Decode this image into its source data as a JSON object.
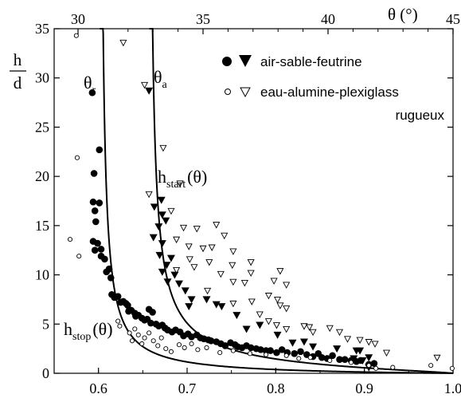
{
  "chart_data": {
    "type": "scatter",
    "x_bottom": {
      "ticks": [
        0.6,
        0.7,
        0.8,
        0.9,
        1.0
      ],
      "tick_labels": [
        "0.6",
        "0.7",
        "0.8",
        "0.9",
        "1.0"
      ],
      "range": [
        0.55,
        1.0
      ]
    },
    "x_top": {
      "label": "θ (°)",
      "ticks": [
        30,
        35,
        40,
        45
      ],
      "tick_labels": [
        "30",
        "35",
        "40",
        "45"
      ]
    },
    "y": {
      "label_num": "h",
      "label_den": "d",
      "ticks": [
        0,
        5,
        10,
        15,
        20,
        25,
        30,
        35
      ],
      "tick_labels": [
        "0",
        "5",
        "10",
        "15",
        "20",
        "25",
        "30",
        "35"
      ],
      "range": [
        0,
        35
      ]
    },
    "legend": {
      "placement": "top-right",
      "entries": [
        {
          "label": "air-sable-feutrine",
          "markers": [
            "filled-circle",
            "filled-triangle-down"
          ]
        },
        {
          "label": "eau-alumine-plexiglass",
          "markers": [
            "open-circle",
            "open-triangle-down"
          ]
        }
      ],
      "extra_line": "rugueux"
    },
    "annotations": {
      "theta_r_base": "θ",
      "theta_r_sub": "r",
      "theta_a_base": "θ",
      "theta_a_sub": "a",
      "h_start_base": "h",
      "h_start_sub": "start",
      "h_start_arg": "(θ)",
      "h_stop_base": "h",
      "h_stop_sub": "stop",
      "h_stop_arg": "(θ)"
    },
    "curves": [
      {
        "name": "h_stop(θ)",
        "asymptote_x": 0.601
      },
      {
        "name": "h_start(θ)",
        "asymptote_x": 0.657
      }
    ],
    "series": [
      {
        "marker": "filled-circle",
        "points": [
          [
            0.593,
            28.5
          ],
          [
            0.595,
            20.3
          ],
          [
            0.601,
            22.7
          ],
          [
            0.594,
            17.4
          ],
          [
            0.596,
            16.5
          ],
          [
            0.601,
            17.3
          ],
          [
            0.597,
            15.4
          ],
          [
            0.594,
            13.4
          ],
          [
            0.599,
            13.2
          ],
          [
            0.596,
            12.5
          ],
          [
            0.603,
            12.6
          ],
          [
            0.603,
            11.9
          ],
          [
            0.607,
            11.6
          ],
          [
            0.609,
            10.3
          ],
          [
            0.612,
            10.6
          ],
          [
            0.614,
            9.7
          ],
          [
            0.615,
            8.0
          ],
          [
            0.618,
            7.7
          ],
          [
            0.622,
            7.8
          ],
          [
            0.625,
            7.2
          ],
          [
            0.628,
            7.3
          ],
          [
            0.631,
            7.1
          ],
          [
            0.633,
            6.9
          ],
          [
            0.634,
            6.3
          ],
          [
            0.637,
            6.4
          ],
          [
            0.641,
            6.1
          ],
          [
            0.642,
            5.8
          ],
          [
            0.645,
            5.9
          ],
          [
            0.649,
            5.6
          ],
          [
            0.652,
            5.4
          ],
          [
            0.655,
            5.5
          ],
          [
            0.657,
            6.5
          ],
          [
            0.659,
            5.1
          ],
          [
            0.661,
            6.2
          ],
          [
            0.665,
            5.0
          ],
          [
            0.668,
            4.8
          ],
          [
            0.672,
            4.9
          ],
          [
            0.675,
            4.6
          ],
          [
            0.678,
            4.4
          ],
          [
            0.683,
            4.2
          ],
          [
            0.687,
            4.4
          ],
          [
            0.692,
            4.2
          ],
          [
            0.696,
            3.8
          ],
          [
            0.701,
            4.0
          ],
          [
            0.705,
            3.7
          ],
          [
            0.711,
            3.9
          ],
          [
            0.715,
            3.6
          ],
          [
            0.719,
            3.5
          ],
          [
            0.724,
            3.4
          ],
          [
            0.727,
            3.3
          ],
          [
            0.733,
            3.2
          ],
          [
            0.738,
            3.0
          ],
          [
            0.743,
            2.8
          ],
          [
            0.749,
            3.1
          ],
          [
            0.754,
            2.9
          ],
          [
            0.757,
            2.7
          ],
          [
            0.762,
            2.6
          ],
          [
            0.767,
            2.8
          ],
          [
            0.772,
            2.6
          ],
          [
            0.778,
            2.5
          ],
          [
            0.783,
            2.4
          ],
          [
            0.789,
            2.3
          ],
          [
            0.794,
            2.3
          ],
          [
            0.801,
            2.1
          ],
          [
            0.807,
            2.4
          ],
          [
            0.813,
            2.1
          ],
          [
            0.821,
            2.0
          ],
          [
            0.828,
            2.2
          ],
          [
            0.835,
            1.9
          ],
          [
            0.842,
            1.7
          ],
          [
            0.848,
            2.0
          ],
          [
            0.852,
            1.6
          ],
          [
            0.858,
            1.5
          ],
          [
            0.864,
            1.8
          ],
          [
            0.872,
            1.4
          ],
          [
            0.878,
            1.4
          ],
          [
            0.885,
            1.3
          ],
          [
            0.891,
            1.2
          ],
          [
            0.896,
            1.3
          ],
          [
            0.905,
            0.9
          ],
          [
            0.911,
            1.0
          ]
        ]
      },
      {
        "marker": "filled-triangle-down",
        "points": [
          [
            0.657,
            28.7
          ],
          [
            0.663,
            16.9
          ],
          [
            0.671,
            17.6
          ],
          [
            0.672,
            16.1
          ],
          [
            0.668,
            14.9
          ],
          [
            0.676,
            15.5
          ],
          [
            0.662,
            13.8
          ],
          [
            0.672,
            13.2
          ],
          [
            0.669,
            12.0
          ],
          [
            0.682,
            11.7
          ],
          [
            0.677,
            11.0
          ],
          [
            0.672,
            10.3
          ],
          [
            0.686,
            10.0
          ],
          [
            0.678,
            9.3
          ],
          [
            0.691,
            9.1
          ],
          [
            0.698,
            8.4
          ],
          [
            0.705,
            7.5
          ],
          [
            0.702,
            6.8
          ],
          [
            0.722,
            7.5
          ],
          [
            0.733,
            7.0
          ],
          [
            0.739,
            6.8
          ],
          [
            0.756,
            5.9
          ],
          [
            0.767,
            4.5
          ],
          [
            0.782,
            4.9
          ],
          [
            0.802,
            3.9
          ],
          [
            0.819,
            3.1
          ],
          [
            0.832,
            3.2
          ],
          [
            0.842,
            2.7
          ],
          [
            0.869,
            2.5
          ],
          [
            0.888,
            1.5
          ],
          [
            0.891,
            2.3
          ],
          [
            0.895,
            2.3
          ],
          [
            0.898,
            1.3
          ],
          [
            0.905,
            1.6
          ],
          [
            0.905,
            0.6
          ]
        ]
      },
      {
        "marker": "open-circle",
        "points": [
          [
            0.575,
            34.3
          ],
          [
            0.576,
            21.9
          ],
          [
            0.568,
            13.6
          ],
          [
            0.578,
            11.9
          ],
          [
            0.622,
            5.3
          ],
          [
            0.624,
            4.8
          ],
          [
            0.635,
            4.1
          ],
          [
            0.638,
            3.3
          ],
          [
            0.641,
            4.5
          ],
          [
            0.645,
            3.9
          ],
          [
            0.649,
            3.0
          ],
          [
            0.652,
            3.6
          ],
          [
            0.657,
            4.1
          ],
          [
            0.662,
            3.3
          ],
          [
            0.667,
            2.8
          ],
          [
            0.671,
            3.6
          ],
          [
            0.676,
            2.5
          ],
          [
            0.682,
            2.2
          ],
          [
            0.691,
            2.9
          ],
          [
            0.697,
            2.6
          ],
          [
            0.705,
            3.0
          ],
          [
            0.712,
            2.4
          ],
          [
            0.722,
            2.6
          ],
          [
            0.737,
            2.1
          ],
          [
            0.752,
            2.3
          ],
          [
            0.771,
            2.0
          ],
          [
            0.789,
            1.9
          ],
          [
            0.812,
            1.8
          ],
          [
            0.826,
            1.5
          ],
          [
            0.839,
            1.6
          ],
          [
            0.861,
            1.3
          ],
          [
            0.885,
            1.1
          ],
          [
            0.905,
            0.8
          ],
          [
            0.913,
            0.5
          ],
          [
            0.932,
            0.6
          ],
          [
            0.975,
            0.8
          ],
          [
            0.999,
            0.5
          ]
        ]
      },
      {
        "marker": "open-triangle-down",
        "points": [
          [
            0.628,
            33.6
          ],
          [
            0.652,
            29.3
          ],
          [
            0.673,
            22.9
          ],
          [
            0.692,
            19.3
          ],
          [
            0.657,
            18.2
          ],
          [
            0.682,
            16.5
          ],
          [
            0.696,
            14.8
          ],
          [
            0.711,
            14.7
          ],
          [
            0.733,
            15.1
          ],
          [
            0.742,
            14.0
          ],
          [
            0.688,
            13.6
          ],
          [
            0.702,
            12.9
          ],
          [
            0.718,
            12.7
          ],
          [
            0.728,
            12.8
          ],
          [
            0.752,
            12.4
          ],
          [
            0.725,
            11.3
          ],
          [
            0.703,
            11.6
          ],
          [
            0.751,
            11.0
          ],
          [
            0.772,
            11.3
          ],
          [
            0.688,
            10.5
          ],
          [
            0.708,
            10.8
          ],
          [
            0.738,
            10.1
          ],
          [
            0.772,
            10.2
          ],
          [
            0.805,
            10.4
          ],
          [
            0.752,
            9.3
          ],
          [
            0.765,
            9.2
          ],
          [
            0.798,
            9.4
          ],
          [
            0.812,
            9.0
          ],
          [
            0.723,
            8.4
          ],
          [
            0.752,
            7.1
          ],
          [
            0.773,
            7.3
          ],
          [
            0.792,
            7.9
          ],
          [
            0.802,
            7.5
          ],
          [
            0.805,
            6.9
          ],
          [
            0.812,
            6.6
          ],
          [
            0.782,
            6.0
          ],
          [
            0.792,
            5.3
          ],
          [
            0.801,
            4.9
          ],
          [
            0.812,
            4.5
          ],
          [
            0.832,
            4.8
          ],
          [
            0.838,
            4.7
          ],
          [
            0.842,
            4.2
          ],
          [
            0.861,
            4.6
          ],
          [
            0.872,
            4.2
          ],
          [
            0.881,
            3.5
          ],
          [
            0.895,
            3.4
          ],
          [
            0.905,
            3.2
          ],
          [
            0.912,
            3.0
          ],
          [
            0.925,
            2.1
          ],
          [
            0.982,
            1.6
          ]
        ]
      }
    ]
  }
}
